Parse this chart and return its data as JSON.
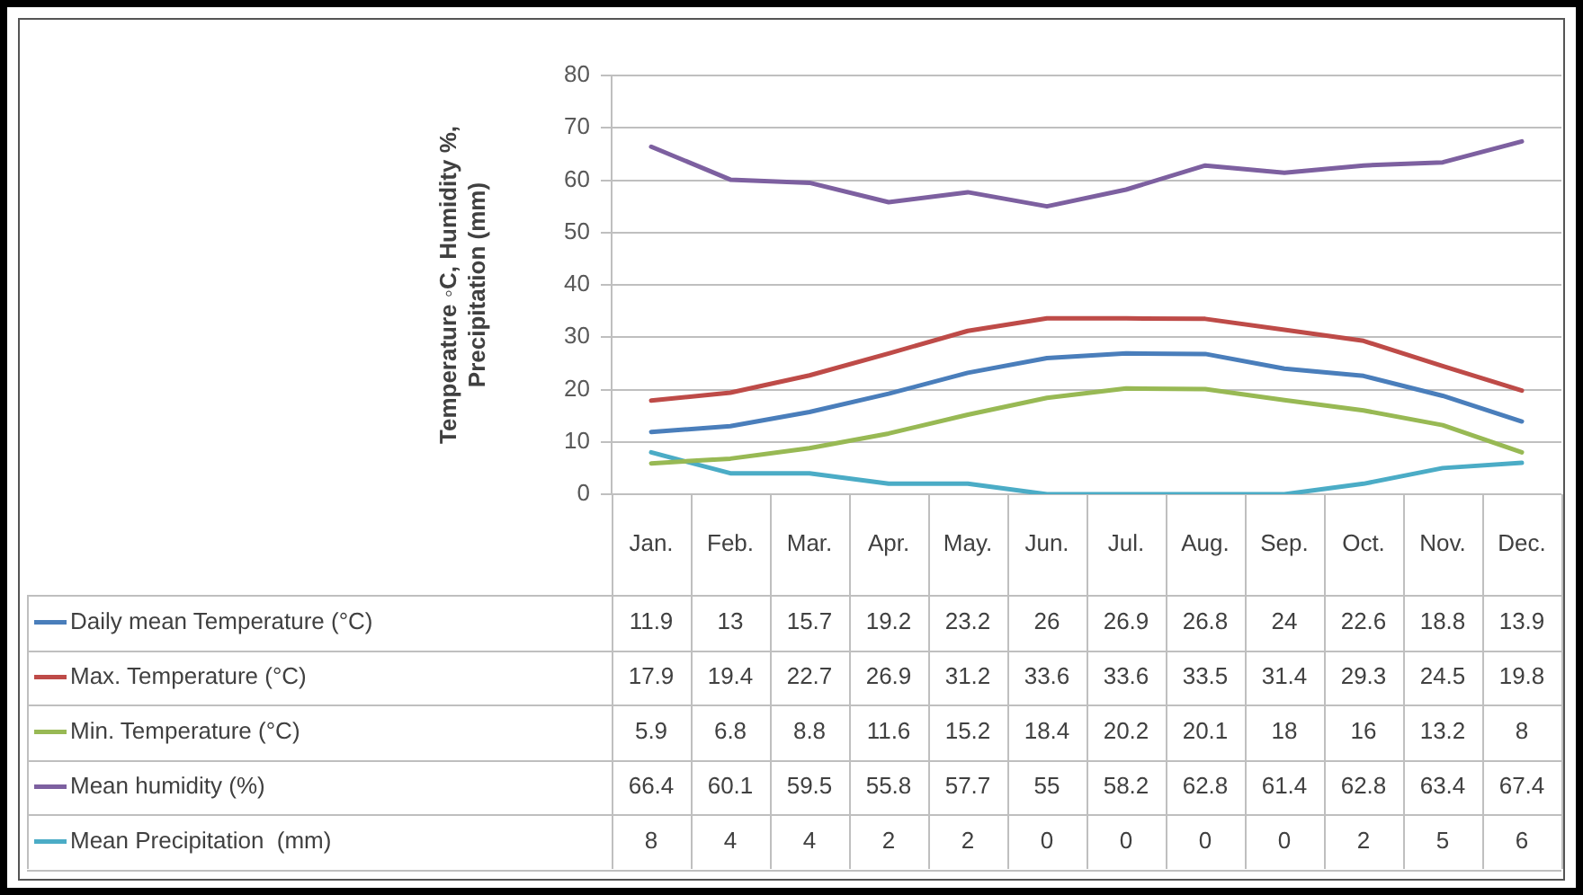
{
  "chart_data": {
    "type": "line",
    "ylabel": "Temperature ◦C, Humidity %, Precipitation (mm)",
    "categories": [
      "Jan.",
      "Feb.",
      "Mar.",
      "Apr.",
      "May.",
      "Jun.",
      "Jul.",
      "Aug.",
      "Sep.",
      "Oct.",
      "Nov.",
      "Dec."
    ],
    "series": [
      {
        "name": "Daily mean Temperature (°C)",
        "color": "#4a7ebb",
        "values": [
          11.9,
          13,
          15.7,
          19.2,
          23.2,
          26,
          26.9,
          26.8,
          24,
          22.6,
          18.8,
          13.9
        ]
      },
      {
        "name": "Max. Temperature (°C)",
        "color": "#be4b48",
        "values": [
          17.9,
          19.4,
          22.7,
          26.9,
          31.2,
          33.6,
          33.6,
          33.5,
          31.4,
          29.3,
          24.5,
          19.8
        ]
      },
      {
        "name": "Min. Temperature (°C)",
        "color": "#98b954",
        "values": [
          5.9,
          6.8,
          8.8,
          11.6,
          15.2,
          18.4,
          20.2,
          20.1,
          18,
          16,
          13.2,
          8
        ]
      },
      {
        "name": "Mean humidity (%)",
        "color": "#7d60a0",
        "values": [
          66.4,
          60.1,
          59.5,
          55.8,
          57.7,
          55,
          58.2,
          62.8,
          61.4,
          62.8,
          63.4,
          67.4
        ]
      },
      {
        "name": "Mean Precipitation  (mm)",
        "color": "#4bacc6",
        "values": [
          8,
          4,
          4,
          2,
          2,
          0,
          0,
          0,
          0,
          2,
          5,
          6
        ]
      }
    ],
    "ylim": [
      0,
      80
    ],
    "yticks": [
      0,
      10,
      20,
      30,
      40,
      50,
      60,
      70,
      80
    ],
    "grid": "y",
    "legend": "bottom",
    "data_labels": true,
    "marker": "none",
    "line_style": "solid"
  }
}
